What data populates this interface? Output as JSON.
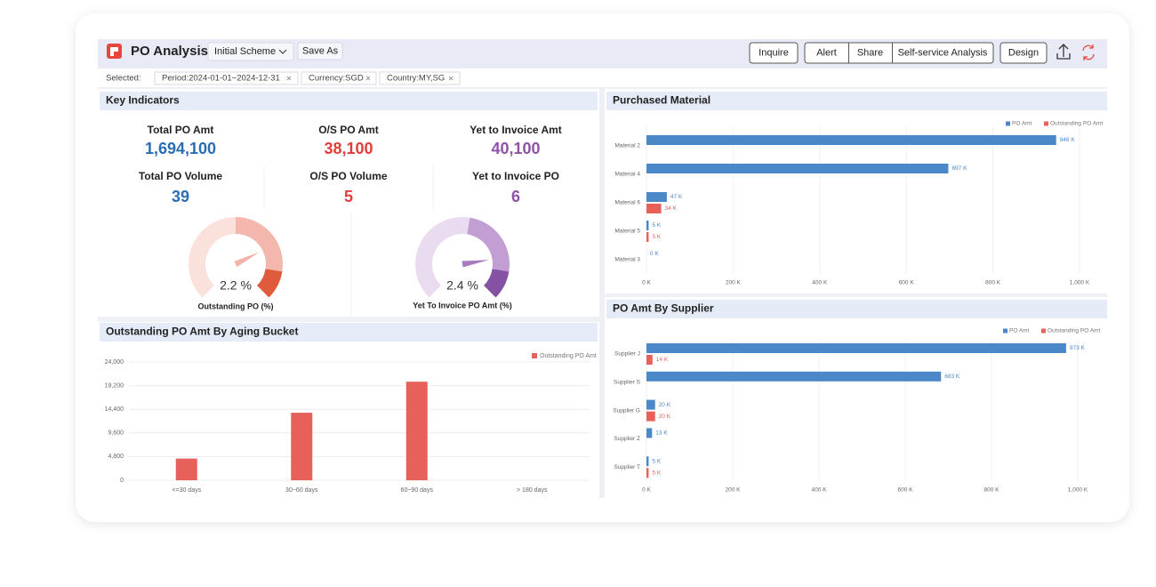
{
  "header": {
    "title": "PO Analysis",
    "scheme": "Initial Scheme",
    "save_as": "Save As",
    "buttons": [
      "Inquire",
      "Alert",
      "Share",
      "Self-service Analysis",
      "Design"
    ]
  },
  "filters": {
    "label": "Selected:",
    "tags": [
      "Period:2024-01-01~2024-12-31",
      "Currency:SGD",
      "Country:MY,SG"
    ]
  },
  "key_indicators": {
    "title": "Key Indicators",
    "items": [
      {
        "label": "Total PO Amt",
        "value": "1,694,100",
        "color": "#2a6db5"
      },
      {
        "label": "O/S PO Amt",
        "value": "38,100",
        "color": "#e03d3d"
      },
      {
        "label": "Yet to Invoice Amt",
        "value": "40,100",
        "color": "#8e52a6"
      },
      {
        "label": "Total PO Volume",
        "value": "39",
        "color": "#2a6db5"
      },
      {
        "label": "O/S PO Volume",
        "value": "5",
        "color": "#e03d3d"
      },
      {
        "label": "Yet to Invoice PO",
        "value": "6",
        "color": "#8e52a6"
      }
    ]
  },
  "chart_data": [
    {
      "type": "gauge",
      "title": "Outstanding PO (%)",
      "value": 2.2,
      "value_label": "2.2 %",
      "range": [
        0,
        3
      ],
      "bands": [
        {
          "from": 0,
          "to": 1.5,
          "color": "#fbe1dc"
        },
        {
          "from": 1.5,
          "to": 2.6,
          "color": "#f4b7ad"
        },
        {
          "from": 2.6,
          "to": 3,
          "color": "#df5b3b"
        }
      ],
      "needle_color": "#f2b3a8"
    },
    {
      "type": "gauge",
      "title": "Yet To Invoice PO Amt (%)",
      "value": 2.4,
      "value_label": "2.4 %",
      "range": [
        0,
        3
      ],
      "bands": [
        {
          "from": 0,
          "to": 1.6,
          "color": "#eadcf0"
        },
        {
          "from": 1.6,
          "to": 2.6,
          "color": "#c29ed3"
        },
        {
          "from": 2.6,
          "to": 3,
          "color": "#8552a3"
        }
      ],
      "needle_color": "#a77bbf"
    },
    {
      "type": "bar",
      "title": "Outstanding PO Amt By Aging Bucket",
      "categories": [
        "<=30 days",
        "30~60 days",
        "60~90 days",
        "> 180 days"
      ],
      "series": [
        {
          "name": "Outstanding PO Amt",
          "color": "#e8605a",
          "values": [
            4400,
            13700,
            20000,
            0
          ]
        }
      ],
      "ylim": [
        0,
        24000
      ],
      "yticks": [
        0,
        {
          "value": 4800,
          "label": "4,800"
        },
        {
          "value": 9600,
          "label": "9,600"
        },
        {
          "value": 14400,
          "label": "14,400"
        },
        {
          "value": 19200,
          "label": "19,200"
        },
        {
          "value": 24000,
          "label": "24,000"
        }
      ],
      "grid": true,
      "legend": "top-right"
    },
    {
      "type": "hbar",
      "title": "Purchased Material",
      "categories": [
        "Material 2",
        "Material 4",
        "Material 6",
        "Material 5",
        "Material 3"
      ],
      "series": [
        {
          "name": "PO Amt",
          "color": "#4a88c9",
          "values": [
            946,
            697,
            47,
            5,
            0
          ],
          "value_labels": [
            "946 K",
            "697 K",
            "47 K",
            "5 K",
            "0 K"
          ]
        },
        {
          "name": "Outstanding PO Amt",
          "color": "#e8605a",
          "values": [
            null,
            null,
            34,
            5,
            null
          ],
          "value_labels": [
            null,
            null,
            "34 K",
            "5 K",
            null
          ]
        }
      ],
      "xlim": [
        0,
        1000
      ],
      "xticks": [
        {
          "value": 0,
          "label": "0 K"
        },
        {
          "value": 200,
          "label": "200 K"
        },
        {
          "value": 400,
          "label": "400 K"
        },
        {
          "value": 600,
          "label": "600 K"
        },
        {
          "value": 800,
          "label": "800 K"
        },
        {
          "value": 1000,
          "label": "1,000 K"
        }
      ],
      "grid": true,
      "legend": "top-right"
    },
    {
      "type": "hbar",
      "title": "PO Amt By Supplier",
      "categories": [
        "Supplier J",
        "Supplier S",
        "Supplier G",
        "Supplier Z",
        "Supplier T"
      ],
      "series": [
        {
          "name": "PO Amt",
          "color": "#4a88c9",
          "values": [
            973,
            683,
            20,
            13,
            5
          ],
          "value_labels": [
            "973 K",
            "683 K",
            "20 K",
            "13 K",
            "5 K"
          ]
        },
        {
          "name": "Outstanding PO Amt",
          "color": "#e8605a",
          "values": [
            14,
            null,
            20,
            null,
            5
          ],
          "value_labels": [
            "14 K",
            null,
            "20 K",
            null,
            "5 K"
          ]
        }
      ],
      "xlim": [
        0,
        1000
      ],
      "xticks": [
        {
          "value": 0,
          "label": "0 K"
        },
        {
          "value": 200,
          "label": "200 K"
        },
        {
          "value": 400,
          "label": "400 K"
        },
        {
          "value": 600,
          "label": "600 K"
        },
        {
          "value": 800,
          "label": "800 K"
        },
        {
          "value": 1000,
          "label": "1,000 K"
        }
      ],
      "grid": true,
      "legend": "top-right"
    }
  ]
}
